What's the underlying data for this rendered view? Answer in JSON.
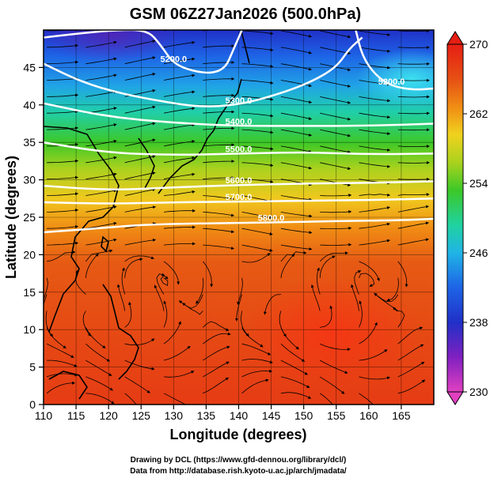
{
  "chart_data": {
    "type": "heatmap",
    "title": "GSM 06Z27Jan2026 (500.0hPa)",
    "xlabel": "Longitude (degrees)",
    "ylabel": "Latitude (degrees)",
    "xlim": [
      110,
      170
    ],
    "ylim": [
      0,
      50
    ],
    "x_ticks": [
      110,
      115,
      120,
      125,
      130,
      135,
      140,
      145,
      150,
      155,
      160,
      165
    ],
    "y_ticks": [
      0,
      5,
      10,
      15,
      20,
      25,
      30,
      35,
      40,
      45
    ],
    "colorbar": {
      "min": 230,
      "max": 270,
      "ticks": [
        230,
        238,
        246,
        254,
        262,
        270
      ],
      "stops": [
        "#e040c0",
        "#8020c0",
        "#2030c8",
        "#1e64e6",
        "#20b4e6",
        "#20d2a0",
        "#3cc828",
        "#aad21e",
        "#f0d21e",
        "#f08c14",
        "#e65014",
        "#e61e14"
      ]
    },
    "temperature_band_centers_deg_lat": {
      "values_K": [
        240,
        246,
        250,
        254,
        258,
        262,
        266,
        268
      ],
      "latitudes": [
        46,
        41,
        37,
        33,
        29.5,
        26,
        20,
        10
      ]
    },
    "contours": {
      "label_color": "#ffffff",
      "series": [
        {
          "name": "5200.0",
          "label": "5200.0",
          "points": [
            [
              110,
              49
            ],
            [
              115,
              49.5
            ],
            [
              121,
              50
            ],
            [
              126,
              50
            ],
            [
              128,
              48
            ],
            [
              130,
              45.5
            ],
            [
              133,
              44.5
            ],
            [
              136,
              44.2
            ],
            [
              138,
              45
            ],
            [
              139,
              47
            ],
            [
              140.5,
              50
            ]
          ]
        },
        {
          "name": "5200.0 east",
          "label": "5200.0",
          "points": [
            [
              158,
              50
            ],
            [
              159,
              46.5
            ],
            [
              161,
              44
            ],
            [
              163.5,
              42.5
            ],
            [
              167,
              42
            ],
            [
              170,
              42.2
            ]
          ]
        },
        {
          "name": "5300.0",
          "label": "5300.0",
          "points": [
            [
              110,
              45.5
            ],
            [
              116,
              43
            ],
            [
              122,
              41.5
            ],
            [
              128,
              40.5
            ],
            [
              134,
              39.7
            ],
            [
              140,
              40
            ],
            [
              146,
              41.4
            ],
            [
              151,
              43
            ],
            [
              155,
              45
            ],
            [
              157,
              47.5
            ],
            [
              159,
              49
            ]
          ]
        },
        {
          "name": "5400.0",
          "label": "5400.0",
          "points": [
            [
              110,
              40.2
            ],
            [
              120,
              38.4
            ],
            [
              130,
              37.6
            ],
            [
              140,
              37.2
            ],
            [
              150,
              37.2
            ],
            [
              160,
              37.2
            ],
            [
              170,
              37.5
            ]
          ]
        },
        {
          "name": "5500.0",
          "label": "5500.0",
          "points": [
            [
              110,
              35
            ],
            [
              120,
              33.6
            ],
            [
              130,
              33.3
            ],
            [
              140,
              33.5
            ],
            [
              150,
              33.7
            ],
            [
              160,
              33.4
            ],
            [
              170,
              33.5
            ]
          ]
        },
        {
          "name": "5600.0",
          "label": "5600.0",
          "points": [
            [
              110,
              29.2
            ],
            [
              120,
              28.6
            ],
            [
              130,
              29
            ],
            [
              140,
              29.3
            ],
            [
              150,
              29.5
            ],
            [
              160,
              29.6
            ],
            [
              170,
              29.8
            ]
          ]
        },
        {
          "name": "5700.0",
          "label": "5700.0",
          "points": [
            [
              110,
              27
            ],
            [
              120,
              26.8
            ],
            [
              130,
              27
            ],
            [
              140,
              27.1
            ],
            [
              150,
              27.2
            ],
            [
              160,
              27.3
            ],
            [
              170,
              27.5
            ]
          ]
        },
        {
          "name": "5800.0",
          "label": "5800.0",
          "points": [
            [
              110,
              23
            ],
            [
              118,
              23.5
            ],
            [
              125,
              24
            ],
            [
              135,
              24.2
            ],
            [
              145,
              24.3
            ],
            [
              155,
              24.5
            ],
            [
              165,
              24.6
            ],
            [
              170,
              24.8
            ]
          ]
        }
      ]
    }
  },
  "credits": {
    "line1": "Drawing by DCL (https://www.gfd-dennou.org/library/dcl/)",
    "line2": "Data from http://database.rish.kyoto-u.ac.jp/arch/jmadata/"
  }
}
